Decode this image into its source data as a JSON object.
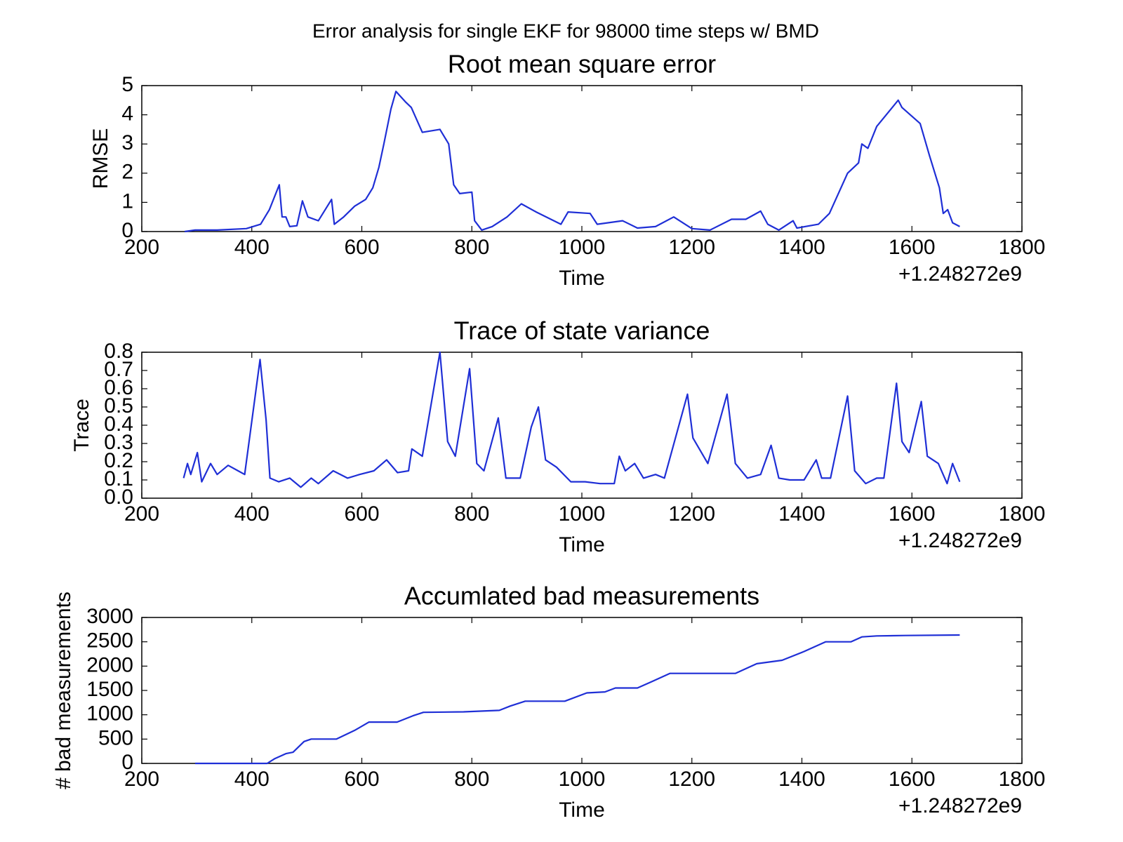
{
  "title": "Error analysis for single EKF for 98000 time steps w/ BMD",
  "chart_data": [
    {
      "type": "line",
      "title": "Root mean square error",
      "xlabel": "Time",
      "ylabel": "RMSE",
      "x_offset_text": "+1.248272e9",
      "color": "#1f2fd6",
      "xlim": [
        200,
        1800
      ],
      "xticks": [
        200,
        400,
        600,
        800,
        1000,
        1200,
        1400,
        1600,
        1800
      ],
      "ylim": [
        0,
        5
      ],
      "yticks": [
        0,
        1,
        2,
        3,
        4,
        5
      ],
      "x": [
        278,
        297,
        337,
        390,
        416,
        432,
        450,
        455,
        462,
        469,
        482,
        492,
        502,
        521,
        545,
        550,
        567,
        587,
        607,
        620,
        631,
        640,
        653,
        662,
        679,
        690,
        710,
        742,
        758,
        767,
        778,
        800,
        805,
        818,
        837,
        864,
        890,
        917,
        962,
        975,
        1015,
        1028,
        1074,
        1101,
        1134,
        1167,
        1200,
        1233,
        1272,
        1298,
        1325,
        1338,
        1358,
        1384,
        1391,
        1430,
        1450,
        1483,
        1503,
        1509,
        1520,
        1536,
        1562,
        1575,
        1582,
        1615,
        1632,
        1650,
        1657,
        1665,
        1674,
        1687
      ],
      "values": [
        0,
        0.05,
        0.05,
        0.1,
        0.25,
        0.75,
        1.6,
        0.5,
        0.5,
        0.17,
        0.2,
        1.05,
        0.5,
        0.37,
        1.1,
        0.25,
        0.5,
        0.87,
        1.1,
        1.5,
        2.2,
        3.0,
        4.2,
        4.8,
        4.45,
        4.25,
        3.4,
        3.5,
        3.0,
        1.6,
        1.3,
        1.35,
        0.37,
        0.05,
        0.17,
        0.5,
        0.95,
        0.67,
        0.25,
        0.67,
        0.62,
        0.25,
        0.37,
        0.12,
        0.17,
        0.5,
        0.1,
        0.05,
        0.42,
        0.42,
        0.7,
        0.25,
        0.05,
        0.37,
        0.12,
        0.25,
        0.62,
        2.0,
        2.35,
        3.0,
        2.85,
        3.6,
        4.2,
        4.5,
        4.25,
        3.7,
        2.6,
        1.5,
        0.62,
        0.75,
        0.3,
        0.17
      ]
    },
    {
      "type": "line",
      "title": "Trace of state variance",
      "xlabel": "Time",
      "ylabel": "Trace",
      "x_offset_text": "+1.248272e9",
      "color": "#1f2fd6",
      "xlim": [
        200,
        1800
      ],
      "xticks": [
        200,
        400,
        600,
        800,
        1000,
        1200,
        1400,
        1600,
        1800
      ],
      "ylim": [
        0,
        0.8
      ],
      "yticks": [
        {
          "value": 0,
          "label": "0.0"
        },
        0.1,
        0.2,
        0.3,
        0.4,
        0.5,
        0.6,
        0.7,
        0.8
      ],
      "x": [
        276,
        283,
        289,
        301,
        309,
        325,
        337,
        357,
        375,
        387,
        415,
        426,
        433,
        449,
        469,
        489,
        508,
        521,
        548,
        574,
        596,
        622,
        645,
        665,
        685,
        691,
        710,
        742,
        756,
        770,
        796,
        809,
        822,
        848,
        862,
        888,
        908,
        921,
        934,
        954,
        980,
        1006,
        1033,
        1059,
        1068,
        1079,
        1096,
        1112,
        1134,
        1150,
        1192,
        1202,
        1229,
        1264,
        1279,
        1301,
        1325,
        1344,
        1358,
        1378,
        1404,
        1426,
        1436,
        1452,
        1483,
        1496,
        1516,
        1536,
        1549,
        1572,
        1582,
        1595,
        1617,
        1628,
        1648,
        1664,
        1674,
        1687
      ],
      "values": [
        0.11,
        0.19,
        0.13,
        0.25,
        0.09,
        0.19,
        0.13,
        0.18,
        0.15,
        0.13,
        0.76,
        0.43,
        0.11,
        0.09,
        0.11,
        0.06,
        0.11,
        0.08,
        0.15,
        0.11,
        0.13,
        0.15,
        0.21,
        0.14,
        0.15,
        0.27,
        0.23,
        0.8,
        0.31,
        0.23,
        0.71,
        0.19,
        0.15,
        0.44,
        0.11,
        0.11,
        0.39,
        0.5,
        0.21,
        0.17,
        0.09,
        0.09,
        0.08,
        0.08,
        0.23,
        0.15,
        0.19,
        0.11,
        0.13,
        0.11,
        0.57,
        0.33,
        0.19,
        0.57,
        0.19,
        0.11,
        0.13,
        0.29,
        0.11,
        0.1,
        0.1,
        0.21,
        0.11,
        0.11,
        0.56,
        0.15,
        0.08,
        0.11,
        0.11,
        0.63,
        0.31,
        0.25,
        0.53,
        0.23,
        0.19,
        0.08,
        0.19,
        0.09
      ]
    },
    {
      "type": "line",
      "title": "Accumlated bad measurements",
      "xlabel": "Time",
      "ylabel": "# bad measurements",
      "x_offset_text": "+1.248272e9",
      "color": "#1f2fd6",
      "xlim": [
        200,
        1800
      ],
      "xticks": [
        200,
        400,
        600,
        800,
        1000,
        1200,
        1400,
        1600,
        1800
      ],
      "ylim": [
        0,
        3000
      ],
      "yticks": [
        0,
        500,
        1000,
        1500,
        2000,
        2500,
        3000
      ],
      "x": [
        297,
        428,
        442,
        462,
        475,
        495,
        508,
        554,
        587,
        613,
        664,
        693,
        712,
        785,
        850,
        870,
        897,
        969,
        1009,
        1042,
        1061,
        1101,
        1127,
        1160,
        1279,
        1318,
        1364,
        1404,
        1443,
        1489,
        1509,
        1536,
        1588,
        1687
      ],
      "values": [
        0,
        0,
        100,
        200,
        230,
        450,
        500,
        500,
        680,
        850,
        850,
        980,
        1050,
        1060,
        1090,
        1180,
        1280,
        1280,
        1450,
        1470,
        1550,
        1550,
        1680,
        1850,
        1850,
        2050,
        2120,
        2300,
        2500,
        2500,
        2600,
        2620,
        2630,
        2640
      ]
    }
  ]
}
